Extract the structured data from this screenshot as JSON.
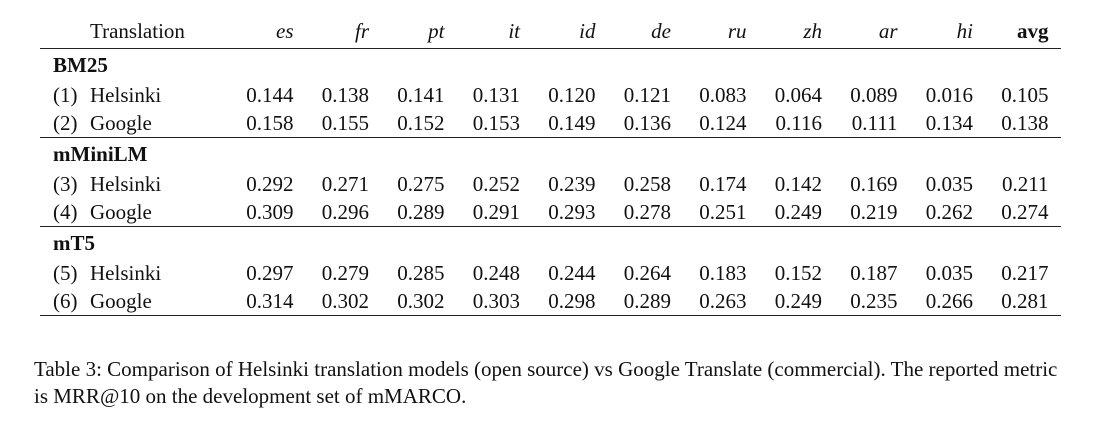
{
  "table": {
    "header": {
      "translation": "Translation",
      "langs": [
        "es",
        "fr",
        "pt",
        "it",
        "id",
        "de",
        "ru",
        "zh",
        "ar",
        "hi"
      ],
      "avg": "avg"
    },
    "groups": [
      {
        "name": "BM25",
        "rows": [
          {
            "idx": "(1)",
            "model": "Helsinki",
            "values": [
              "0.144",
              "0.138",
              "0.141",
              "0.131",
              "0.120",
              "0.121",
              "0.083",
              "0.064",
              "0.089",
              "0.016",
              "0.105"
            ]
          },
          {
            "idx": "(2)",
            "model": "Google",
            "values": [
              "0.158",
              "0.155",
              "0.152",
              "0.153",
              "0.149",
              "0.136",
              "0.124",
              "0.116",
              "0.111",
              "0.134",
              "0.138"
            ]
          }
        ]
      },
      {
        "name": "mMiniLM",
        "rows": [
          {
            "idx": "(3)",
            "model": "Helsinki",
            "values": [
              "0.292",
              "0.271",
              "0.275",
              "0.252",
              "0.239",
              "0.258",
              "0.174",
              "0.142",
              "0.169",
              "0.035",
              "0.211"
            ]
          },
          {
            "idx": "(4)",
            "model": "Google",
            "values": [
              "0.309",
              "0.296",
              "0.289",
              "0.291",
              "0.293",
              "0.278",
              "0.251",
              "0.249",
              "0.219",
              "0.262",
              "0.274"
            ]
          }
        ]
      },
      {
        "name": "mT5",
        "rows": [
          {
            "idx": "(5)",
            "model": "Helsinki",
            "values": [
              "0.297",
              "0.279",
              "0.285",
              "0.248",
              "0.244",
              "0.264",
              "0.183",
              "0.152",
              "0.187",
              "0.035",
              "0.217"
            ]
          },
          {
            "idx": "(6)",
            "model": "Google",
            "values": [
              "0.314",
              "0.302",
              "0.302",
              "0.303",
              "0.298",
              "0.289",
              "0.263",
              "0.249",
              "0.235",
              "0.266",
              "0.281"
            ]
          }
        ]
      }
    ]
  },
  "caption": "Table 3: Comparison of Helsinki translation models (open source) vs Google Translate (commercial). The reported metric is MRR@10 on the development set of mMARCO."
}
